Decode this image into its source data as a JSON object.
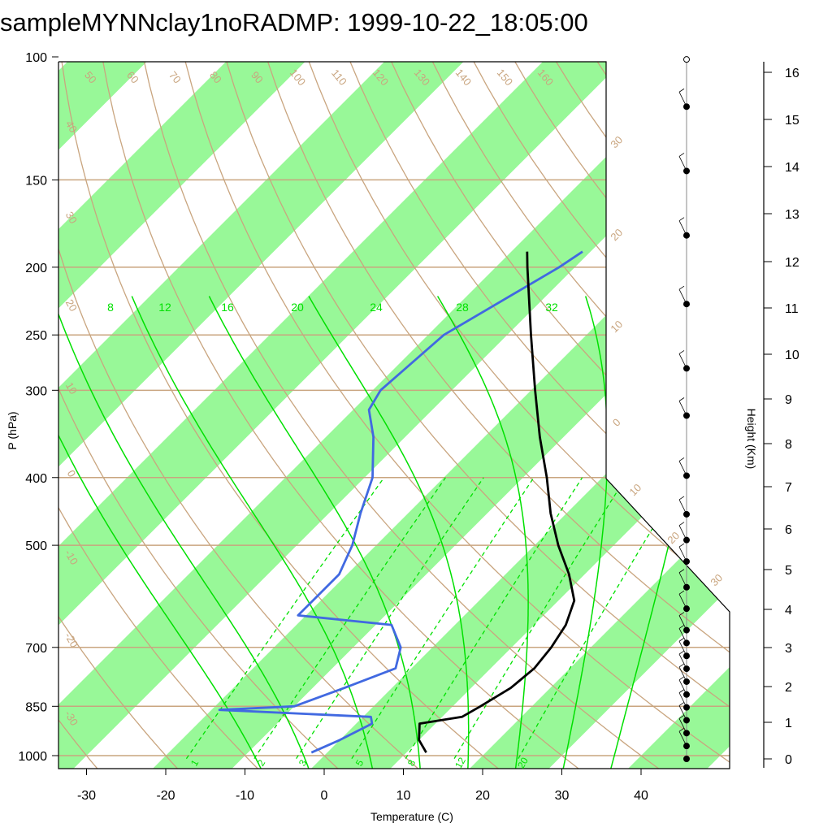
{
  "title": "sampleMYNNclay1noRADMP: 1999-10-22_18:05:00",
  "colors": {
    "isobar": "#c9a57f",
    "dry_adiabat": "#c9a57f",
    "isotherm_band": "#98f898",
    "moist_adiabat": "#00e000",
    "mixing_ratio": "#00e000",
    "temperature": "#000000",
    "dewpoint": "#4169e1",
    "wind": "#000000"
  },
  "chart_data": {
    "type": "skew-t",
    "title": "sampleMYNNclay1noRADMP: 1999-10-22_18:05:00",
    "xlabel": "Temperature (C)",
    "ylabel": "P (hPa)",
    "y2label": "Height (Km)",
    "x_ticks": [
      -30,
      -20,
      -10,
      0,
      10,
      20,
      30,
      40
    ],
    "p_ticks": [
      100,
      150,
      200,
      250,
      300,
      400,
      500,
      700,
      850,
      1000
    ],
    "height_ticks": [
      16,
      15,
      14,
      13,
      12,
      11,
      10,
      9,
      8,
      7,
      6,
      5,
      4,
      3,
      2,
      1,
      0
    ],
    "isotherm_labels": [
      "30",
      "20",
      "10",
      "0",
      "10",
      "20",
      "30"
    ],
    "dry_adiabat_labels": [
      "50",
      "60",
      "70",
      "80",
      "90",
      "100",
      "110",
      "120",
      "130",
      "140",
      "150",
      "160"
    ],
    "dry_adiabat_left_labels": [
      "40",
      "30",
      "20",
      "10",
      "0",
      "-10",
      "-20",
      "-30"
    ],
    "moist_adiabat_labels": [
      "8",
      "12",
      "16",
      "20",
      "24",
      "28",
      "32"
    ],
    "mixing_ratio_labels": [
      "1",
      "2",
      "3",
      "5",
      "8",
      "12",
      "20"
    ],
    "temperature_profile": [
      {
        "p": 990,
        "t": 12.5
      },
      {
        "p": 950,
        "t": 10.0
      },
      {
        "p": 900,
        "t": 8.0
      },
      {
        "p": 880,
        "t": 12.5
      },
      {
        "p": 850,
        "t": 13.5
      },
      {
        "p": 800,
        "t": 15.0
      },
      {
        "p": 750,
        "t": 15.5
      },
      {
        "p": 700,
        "t": 15.0
      },
      {
        "p": 650,
        "t": 14.0
      },
      {
        "p": 600,
        "t": 12.0
      },
      {
        "p": 550,
        "t": 8.0
      },
      {
        "p": 500,
        "t": 3.0
      },
      {
        "p": 450,
        "t": -2.0
      },
      {
        "p": 400,
        "t": -7.0
      },
      {
        "p": 350,
        "t": -13.0
      },
      {
        "p": 300,
        "t": -19.5
      },
      {
        "p": 250,
        "t": -27.0
      },
      {
        "p": 200,
        "t": -36.0
      },
      {
        "p": 190,
        "t": -38.0
      }
    ],
    "dewpoint_profile": [
      {
        "p": 990,
        "t": -2.0
      },
      {
        "p": 950,
        "t": 0.0
      },
      {
        "p": 900,
        "t": 2.0
      },
      {
        "p": 880,
        "t": 1.0
      },
      {
        "p": 860,
        "t": -19.0
      },
      {
        "p": 850,
        "t": -10.0
      },
      {
        "p": 800,
        "t": -6.0
      },
      {
        "p": 750,
        "t": -2.0
      },
      {
        "p": 700,
        "t": -4.0
      },
      {
        "p": 650,
        "t": -8.0
      },
      {
        "p": 630,
        "t": -21.0
      },
      {
        "p": 600,
        "t": -21.0
      },
      {
        "p": 550,
        "t": -21.0
      },
      {
        "p": 500,
        "t": -23.0
      },
      {
        "p": 450,
        "t": -26.0
      },
      {
        "p": 400,
        "t": -29.0
      },
      {
        "p": 350,
        "t": -34.0
      },
      {
        "p": 320,
        "t": -38.0
      },
      {
        "p": 300,
        "t": -39.0
      },
      {
        "p": 250,
        "t": -38.0
      },
      {
        "p": 200,
        "t": -32.0
      },
      {
        "p": 190,
        "t": -31.0
      }
    ],
    "wind_barb_heights_km": [
      0.0,
      0.3,
      0.6,
      0.9,
      1.2,
      1.5,
      1.8,
      2.1,
      2.4,
      2.7,
      3.0,
      3.5,
      4.0,
      4.6,
      5.1,
      5.7,
      6.6,
      8.0,
      9.1,
      10.6,
      12.2,
      13.7,
      15.2,
      16.3
    ]
  }
}
